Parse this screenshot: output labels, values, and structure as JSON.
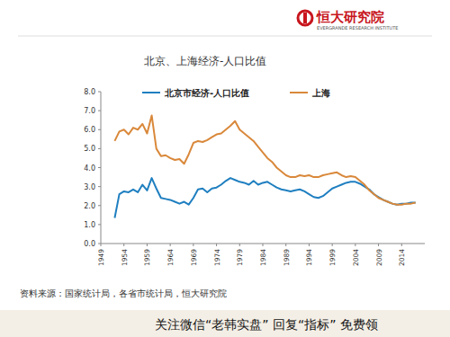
{
  "header": {
    "brand": "恒大研究院",
    "brand_en": "EVERGRANDE RESEARCH INSTITUTE"
  },
  "chart_data": {
    "type": "line",
    "title": "北京、上海经济-人口比值",
    "x": [
      1952,
      1953,
      1954,
      1955,
      1956,
      1957,
      1958,
      1959,
      1960,
      1961,
      1962,
      1963,
      1964,
      1965,
      1966,
      1967,
      1968,
      1969,
      1970,
      1971,
      1972,
      1973,
      1974,
      1975,
      1976,
      1977,
      1978,
      1979,
      1980,
      1981,
      1982,
      1983,
      1984,
      1985,
      1986,
      1987,
      1988,
      1989,
      1990,
      1991,
      1992,
      1993,
      1994,
      1995,
      1996,
      1997,
      1998,
      1999,
      2000,
      2001,
      2002,
      2003,
      2004,
      2005,
      2006,
      2007,
      2008,
      2009,
      2010,
      2011,
      2012,
      2013,
      2014,
      2015,
      2016,
      2017
    ],
    "series": [
      {
        "name": "北京市经济-人口比值",
        "color": "#1f7fc0",
        "values": [
          1.35,
          2.6,
          2.75,
          2.7,
          2.85,
          2.7,
          3.1,
          2.8,
          3.45,
          2.9,
          2.4,
          2.35,
          2.3,
          2.2,
          2.1,
          2.2,
          2.05,
          2.4,
          2.85,
          2.9,
          2.7,
          2.9,
          2.95,
          3.1,
          3.3,
          3.45,
          3.35,
          3.25,
          3.2,
          3.1,
          3.3,
          3.1,
          3.2,
          3.25,
          3.1,
          2.95,
          2.85,
          2.8,
          2.75,
          2.8,
          2.85,
          2.75,
          2.6,
          2.45,
          2.4,
          2.5,
          2.7,
          2.9,
          3.0,
          3.1,
          3.2,
          3.25,
          3.25,
          3.15,
          3.0,
          2.85,
          2.6,
          2.45,
          2.3,
          2.2,
          2.1,
          2.05,
          2.1,
          2.1,
          2.15,
          2.15
        ]
      },
      {
        "name": "上海",
        "color": "#d9883a",
        "values": [
          5.4,
          5.9,
          6.0,
          5.75,
          6.1,
          6.0,
          6.3,
          5.8,
          6.75,
          5.0,
          4.6,
          4.65,
          4.5,
          4.4,
          4.45,
          4.2,
          4.7,
          5.3,
          5.4,
          5.35,
          5.45,
          5.6,
          5.75,
          5.8,
          6.0,
          6.2,
          6.45,
          6.0,
          5.8,
          5.6,
          5.4,
          5.1,
          4.8,
          4.5,
          4.3,
          4.0,
          3.8,
          3.6,
          3.5,
          3.5,
          3.6,
          3.55,
          3.6,
          3.5,
          3.5,
          3.6,
          3.65,
          3.7,
          3.75,
          3.6,
          3.5,
          3.55,
          3.5,
          3.3,
          3.1,
          2.8,
          2.6,
          2.4,
          2.3,
          2.2,
          2.1,
          2.05,
          2.05,
          2.1,
          2.1,
          2.15
        ]
      }
    ],
    "xlim": [
      1949,
      2019
    ],
    "xticks": [
      1949,
      1954,
      1959,
      1964,
      1969,
      1974,
      1979,
      1984,
      1989,
      1994,
      1999,
      2004,
      2009,
      2014
    ],
    "ylim": [
      0,
      8
    ],
    "yticks": [
      {
        "value": 0,
        "label": "0.0"
      },
      {
        "value": 1,
        "label": "1.0"
      },
      {
        "value": 2,
        "label": "2.0"
      },
      {
        "value": 3,
        "label": "3.0"
      },
      {
        "value": 4,
        "label": "4.0"
      },
      {
        "value": 5,
        "label": "5.0"
      },
      {
        "value": 6,
        "label": "6.0"
      },
      {
        "value": 7,
        "label": "7.0"
      },
      {
        "value": 8,
        "label": "8.0"
      }
    ],
    "grid": false,
    "legend": "top"
  },
  "footer": {
    "source": "资料来源：国家统计局，各省市统计局，恒大研究院",
    "promo": "关注微信“老韩实盘” 回复“指标” 免费领"
  }
}
